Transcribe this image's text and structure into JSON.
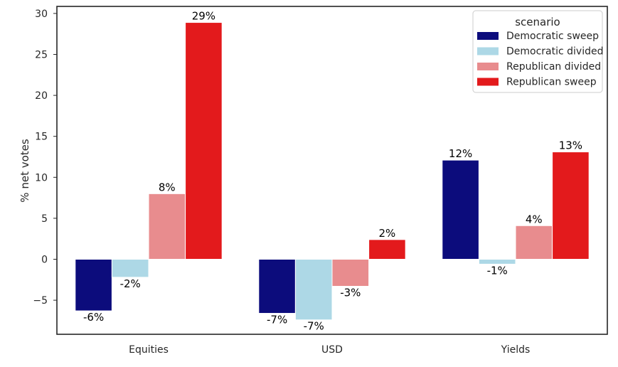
{
  "chart_data": {
    "type": "bar",
    "title": "",
    "xlabel": "",
    "ylabel": "% net votes",
    "categories": [
      "Equities",
      "USD",
      "Yields"
    ],
    "ylim": [
      -9,
      31
    ],
    "yticks": [
      -5,
      0,
      5,
      10,
      15,
      20,
      25,
      30
    ],
    "ytick_labels": [
      "−5",
      "0",
      "5",
      "10",
      "15",
      "20",
      "25",
      "30"
    ],
    "grid": false,
    "legend": {
      "title": "scenario",
      "placement": "top-right"
    },
    "series": [
      {
        "name": "Democratic sweep",
        "color": "#0c0c7c",
        "values": [
          -6.3,
          -6.6,
          12.1
        ],
        "labels": [
          "-6%",
          "-7%",
          "12%"
        ]
      },
      {
        "name": "Democratic divided",
        "color": "#add8e6",
        "values": [
          -2.2,
          -7.4,
          -0.6
        ],
        "labels": [
          "-2%",
          "-7%",
          "-1%"
        ]
      },
      {
        "name": "Republican divided",
        "color": "#e88c8e",
        "values": [
          8.0,
          -3.3,
          4.1
        ],
        "labels": [
          "8%",
          "-3%",
          "4%"
        ]
      },
      {
        "name": "Republican sweep",
        "color": "#e31a1c",
        "values": [
          28.9,
          2.4,
          13.1
        ],
        "labels": [
          "29%",
          "2%",
          "13%"
        ]
      }
    ]
  }
}
